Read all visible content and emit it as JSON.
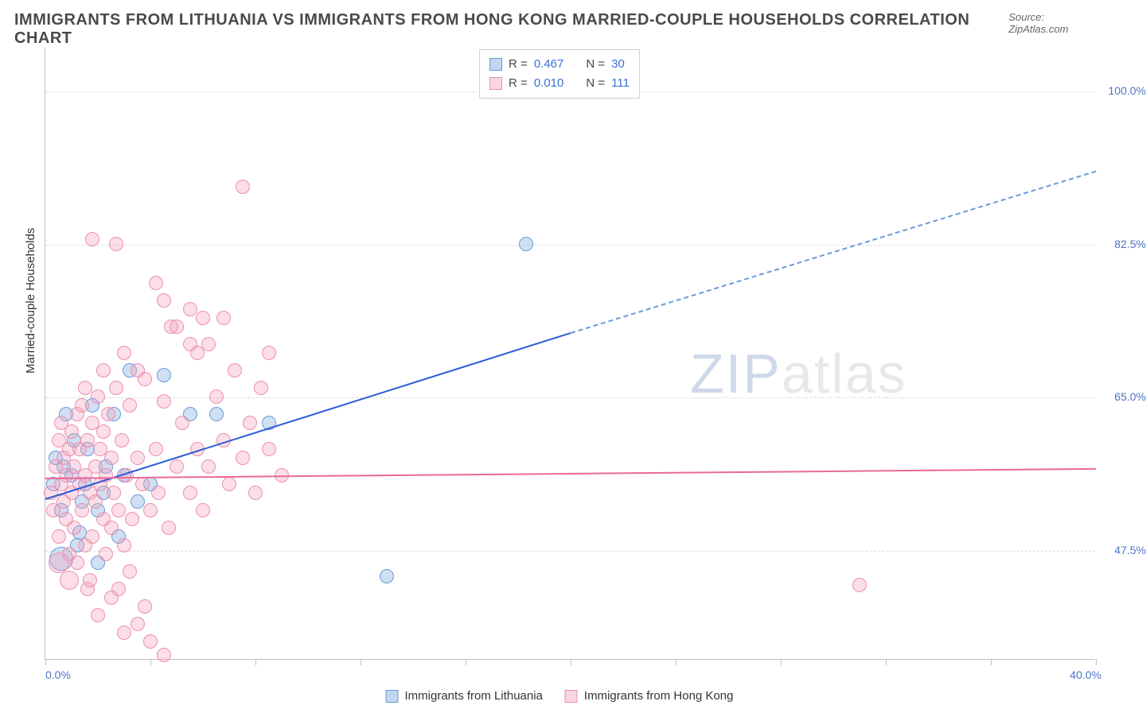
{
  "header": {
    "title": "IMMIGRANTS FROM LITHUANIA VS IMMIGRANTS FROM HONG KONG MARRIED-COUPLE HOUSEHOLDS CORRELATION CHART",
    "source": "Source: ZipAtlas.com"
  },
  "watermark": {
    "zip": "ZIP",
    "atlas": "atlas"
  },
  "chart": {
    "type": "scatter",
    "axis_y_title": "Married-couple Households",
    "colors": {
      "blue_fill": "rgba(121,165,221,0.35)",
      "blue_stroke": "#6a9ad8",
      "pink_fill": "rgba(244,160,187,0.35)",
      "pink_stroke": "#ec8fb0",
      "trend_blue": "#2a5bd7",
      "trend_pink": "#e86a99",
      "grid": "#dcdcdc",
      "axis": "#bfbfbf",
      "label": "#4d74c5",
      "bg": "#ffffff"
    },
    "xlim": [
      0,
      40
    ],
    "ylim": [
      35,
      105
    ],
    "x_tick_step": 4,
    "y_ticks": [
      47.5,
      65.0,
      82.5,
      100.0
    ],
    "y_tick_labels": [
      "47.5%",
      "65.0%",
      "82.5%",
      "100.0%"
    ],
    "x_labels": {
      "min": "0.0%",
      "max": "40.0%"
    },
    "point_radius": 9,
    "series": [
      {
        "name": "Immigrants from Lithuania",
        "color": "blue",
        "R": "0.467",
        "N": "30",
        "label": "Immigrants from Lithuania",
        "trend": {
          "x1": 0,
          "y1": 53.5,
          "x2": 20,
          "y2": 72.5,
          "solid_until_x": 20,
          "dash_to_x": 40,
          "dash_to_y": 91.0
        },
        "points": [
          [
            0.3,
            55
          ],
          [
            0.4,
            58
          ],
          [
            0.6,
            52
          ],
          [
            0.7,
            57
          ],
          [
            0.8,
            63
          ],
          [
            1.0,
            56
          ],
          [
            1.1,
            60
          ],
          [
            1.2,
            48
          ],
          [
            1.3,
            49.5
          ],
          [
            1.4,
            53
          ],
          [
            1.5,
            55
          ],
          [
            1.6,
            59
          ],
          [
            1.8,
            64
          ],
          [
            2.0,
            46
          ],
          [
            2.0,
            52
          ],
          [
            2.2,
            54
          ],
          [
            2.3,
            57
          ],
          [
            2.6,
            63
          ],
          [
            2.8,
            49
          ],
          [
            3.0,
            56
          ],
          [
            3.2,
            68
          ],
          [
            3.5,
            53
          ],
          [
            4.0,
            55
          ],
          [
            4.5,
            67.5
          ],
          [
            5.5,
            63
          ],
          [
            6.5,
            63
          ],
          [
            8.5,
            62
          ],
          [
            13.0,
            44.5
          ],
          [
            18.3,
            82.5
          ]
        ],
        "big_points": [
          {
            "x": 0.6,
            "y": 46.5,
            "r": 15
          }
        ]
      },
      {
        "name": "Immigrants from Hong Kong",
        "color": "pink",
        "R": "0.010",
        "N": "111",
        "label": "Immigrants from Hong Kong",
        "trend": {
          "x1": 0,
          "y1": 55.8,
          "x2": 40,
          "y2": 56.9
        },
        "points": [
          [
            0.2,
            54
          ],
          [
            0.3,
            52
          ],
          [
            0.4,
            57
          ],
          [
            0.5,
            60
          ],
          [
            0.5,
            49
          ],
          [
            0.6,
            55
          ],
          [
            0.6,
            62
          ],
          [
            0.7,
            53
          ],
          [
            0.7,
            58
          ],
          [
            0.8,
            51
          ],
          [
            0.8,
            56
          ],
          [
            0.9,
            59
          ],
          [
            0.9,
            47
          ],
          [
            1.0,
            54
          ],
          [
            1.0,
            61
          ],
          [
            1.1,
            50
          ],
          [
            1.1,
            57
          ],
          [
            1.2,
            63
          ],
          [
            1.2,
            46
          ],
          [
            1.3,
            55
          ],
          [
            1.3,
            59
          ],
          [
            1.4,
            52
          ],
          [
            1.4,
            64
          ],
          [
            1.5,
            48
          ],
          [
            1.5,
            56
          ],
          [
            1.6,
            60
          ],
          [
            1.6,
            43
          ],
          [
            1.7,
            54
          ],
          [
            1.7,
            44
          ],
          [
            1.8,
            62
          ],
          [
            1.8,
            49
          ],
          [
            1.9,
            57
          ],
          [
            1.9,
            53
          ],
          [
            2.0,
            65
          ],
          [
            2.0,
            40
          ],
          [
            2.1,
            55
          ],
          [
            2.1,
            59
          ],
          [
            2.2,
            51
          ],
          [
            2.2,
            61
          ],
          [
            2.3,
            47
          ],
          [
            2.3,
            56
          ],
          [
            2.4,
            63
          ],
          [
            2.5,
            50
          ],
          [
            2.5,
            42
          ],
          [
            2.5,
            58
          ],
          [
            2.6,
            54
          ],
          [
            2.7,
            66
          ],
          [
            2.8,
            52
          ],
          [
            2.9,
            60
          ],
          [
            3.0,
            48
          ],
          [
            3.0,
            38
          ],
          [
            3.1,
            56
          ],
          [
            3.2,
            64
          ],
          [
            3.3,
            51
          ],
          [
            3.5,
            39
          ],
          [
            3.5,
            58
          ],
          [
            3.7,
            55
          ],
          [
            3.8,
            67
          ],
          [
            4.0,
            52
          ],
          [
            4.0,
            37
          ],
          [
            4.2,
            59
          ],
          [
            4.3,
            54
          ],
          [
            4.5,
            64.5
          ],
          [
            4.7,
            50
          ],
          [
            5.0,
            57
          ],
          [
            5.2,
            62
          ],
          [
            5.5,
            54
          ],
          [
            5.5,
            71
          ],
          [
            5.8,
            59
          ],
          [
            6.0,
            52
          ],
          [
            6.0,
            74
          ],
          [
            6.2,
            57
          ],
          [
            6.5,
            65
          ],
          [
            6.8,
            60
          ],
          [
            6.8,
            74
          ],
          [
            7.0,
            55
          ],
          [
            7.2,
            68
          ],
          [
            7.5,
            58
          ],
          [
            7.5,
            89
          ],
          [
            7.8,
            62
          ],
          [
            8.0,
            54
          ],
          [
            8.2,
            66
          ],
          [
            8.5,
            59
          ],
          [
            8.5,
            70
          ],
          [
            9.0,
            56
          ],
          [
            1.8,
            83
          ],
          [
            2.7,
            82.5
          ],
          [
            4.2,
            78
          ],
          [
            4.5,
            76
          ],
          [
            4.8,
            73
          ],
          [
            5.0,
            73
          ],
          [
            5.5,
            75
          ],
          [
            5.8,
            70
          ],
          [
            6.2,
            71
          ],
          [
            3.0,
            70
          ],
          [
            3.5,
            68
          ],
          [
            2.2,
            68
          ],
          [
            1.5,
            66
          ],
          [
            2.8,
            43
          ],
          [
            3.2,
            45
          ],
          [
            3.8,
            41
          ],
          [
            4.5,
            35.5
          ],
          [
            31.0,
            43.5
          ]
        ],
        "big_points": [
          {
            "x": 0.5,
            "y": 46,
            "r": 13
          },
          {
            "x": 0.9,
            "y": 44,
            "r": 12
          }
        ]
      }
    ],
    "legend_top": {
      "rows": [
        {
          "swatch": "blue",
          "r_label": "R =",
          "r_val": "0.467",
          "n_label": "N =",
          "n_val": "30"
        },
        {
          "swatch": "pink",
          "r_label": "R =",
          "r_val": "0.010",
          "n_label": "N =",
          "n_val": "111"
        }
      ]
    },
    "legend_bottom": [
      {
        "swatch": "blue",
        "label": "Immigrants from Lithuania"
      },
      {
        "swatch": "pink",
        "label": "Immigrants from Hong Kong"
      }
    ]
  }
}
